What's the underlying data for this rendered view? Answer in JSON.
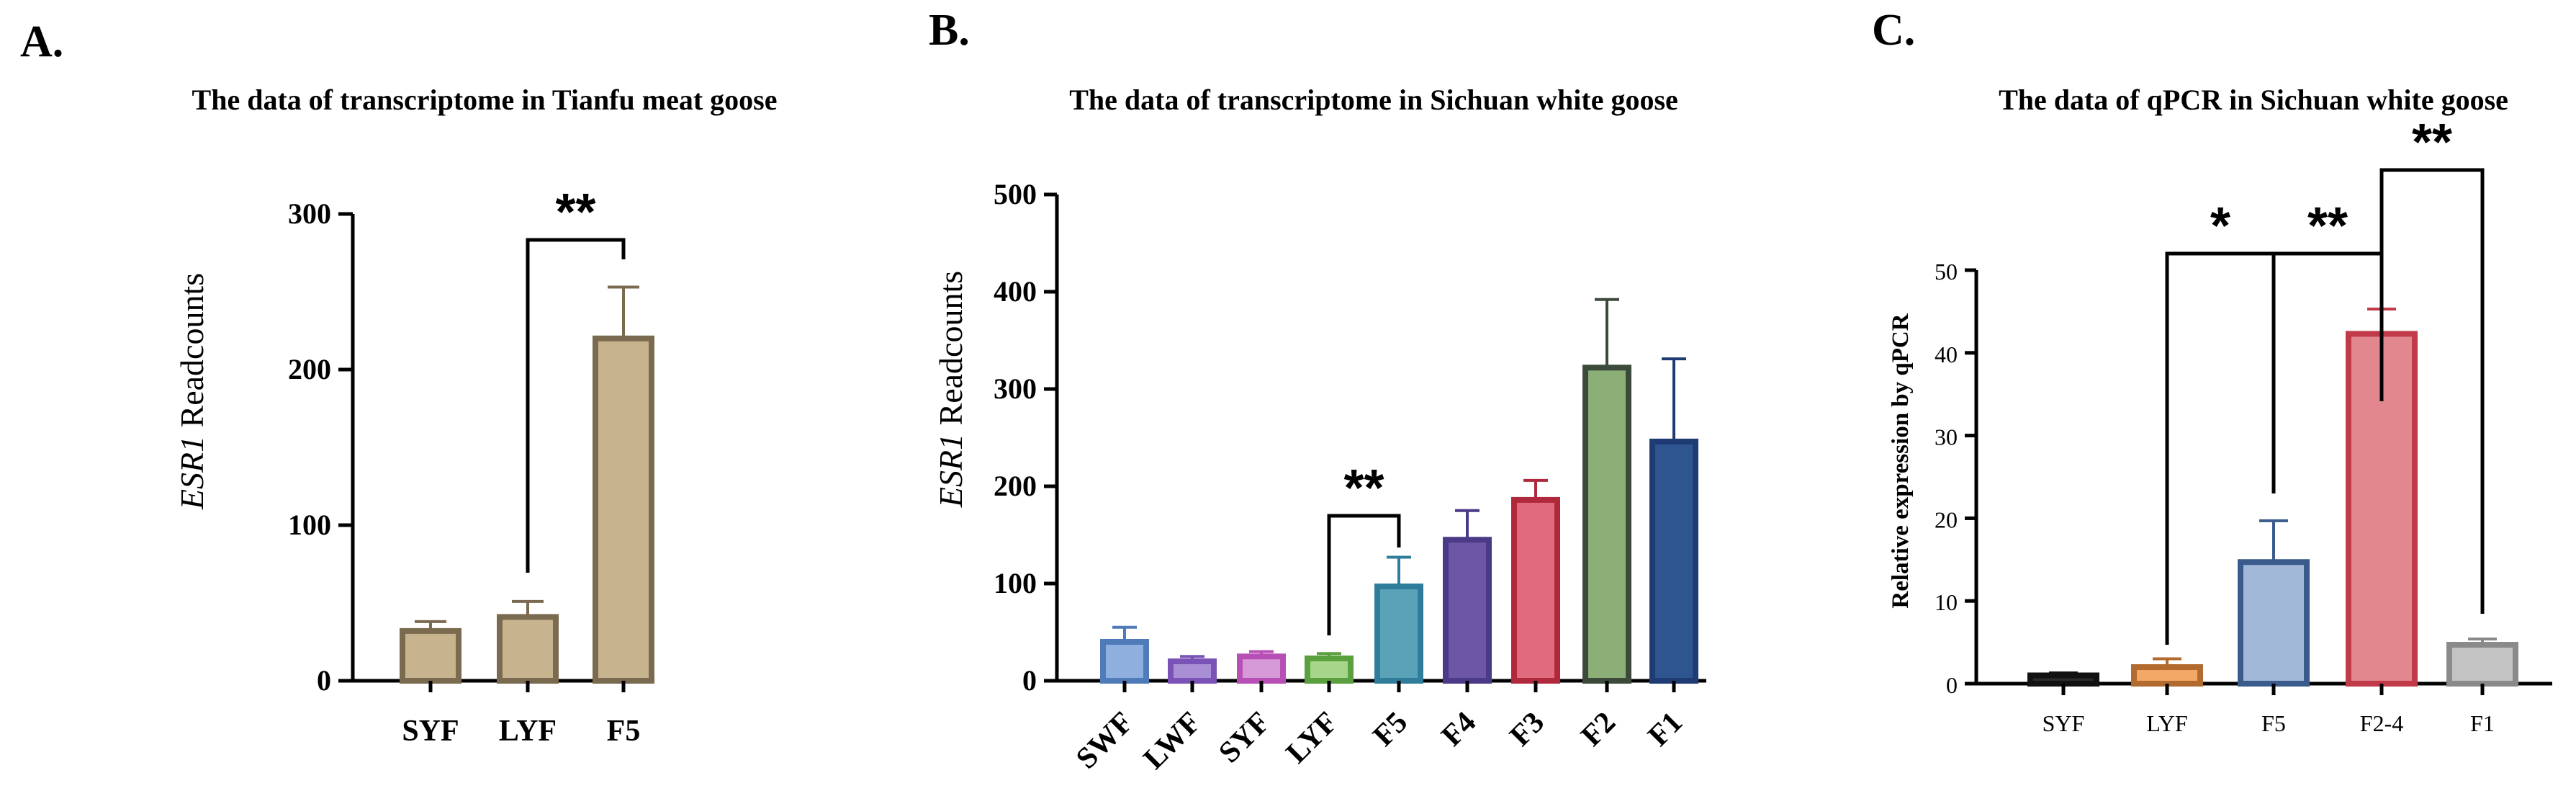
{
  "chart_data": [
    {
      "panel": "A.",
      "type": "bar",
      "title": "The data of transcriptome in Tianfu meat goose",
      "ylabel_italic": "ESR1",
      "ylabel_rest": " Readcounts",
      "ylim": [
        0,
        300
      ],
      "yticks": [
        0,
        100,
        200,
        300
      ],
      "categories": [
        "SYF",
        "LYF",
        "F5"
      ],
      "values": [
        32,
        41,
        220
      ],
      "errors": [
        6,
        10,
        33
      ],
      "colors": [
        "#7a6a4f",
        "#7a6a4f",
        "#7a6a4f"
      ],
      "fills": [
        "#c8b38f",
        "#c8b38f",
        "#c8b38f"
      ],
      "significance": [
        {
          "from": 1,
          "to": 2,
          "label": "**"
        }
      ]
    },
    {
      "panel": "B.",
      "type": "bar",
      "title": "The data of transcriptome in Sichuan white goose",
      "ylabel_italic": "ESR1",
      "ylabel_rest": " Readcounts",
      "ylim": [
        0,
        500
      ],
      "yticks": [
        0,
        100,
        200,
        300,
        400,
        500
      ],
      "categories": [
        "SWF",
        "LWF",
        "SYF",
        "LYF",
        "F5",
        "F4",
        "F3",
        "F2",
        "F1"
      ],
      "values": [
        40,
        20,
        25,
        23,
        97,
        145,
        186,
        322,
        246
      ],
      "errors": [
        15,
        5,
        5,
        5,
        30,
        30,
        20,
        70,
        85
      ],
      "colors": [
        "#4f7bb8",
        "#7b52b5",
        "#b84fb4",
        "#5aa03e",
        "#2f7d9a",
        "#4b3a88",
        "#b0283c",
        "#3b4a3b",
        "#1f3b73"
      ],
      "fills": [
        "#8fb0de",
        "#a88fd6",
        "#d79ad8",
        "#a6d68a",
        "#5aa2b8",
        "#6e56a6",
        "#e06b7e",
        "#8caf78",
        "#2f5591"
      ],
      "significance": [
        {
          "from": 3,
          "to": 4,
          "label": "**"
        }
      ]
    },
    {
      "panel": "C.",
      "type": "bar",
      "title": "The data of qPCR in Sichuan white goose",
      "ylabel": "Relative expression by qPCR",
      "ylim": [
        0,
        50
      ],
      "yticks": [
        0,
        10,
        20,
        30,
        40,
        50
      ],
      "categories": [
        "SYF",
        "LYF",
        "F5",
        "F2-4",
        "F1"
      ],
      "values": [
        1,
        2,
        14.7,
        42.3,
        4.7
      ],
      "errors": [
        0.3,
        1,
        5,
        3,
        0.7
      ],
      "colors": [
        "#111111",
        "#b26a2e",
        "#3a5b8c",
        "#c03a4a",
        "#8a8a8a"
      ],
      "fills": [
        "#2a2a2a",
        "#f4a867",
        "#a2b8d8",
        "#e3878f",
        "#c3c3c3"
      ],
      "significance": [
        {
          "from": 1,
          "to": 2,
          "label": "*"
        },
        {
          "from": 2,
          "to": 3,
          "label": "**"
        },
        {
          "from": 3,
          "to": 4,
          "label": "**"
        }
      ]
    }
  ]
}
